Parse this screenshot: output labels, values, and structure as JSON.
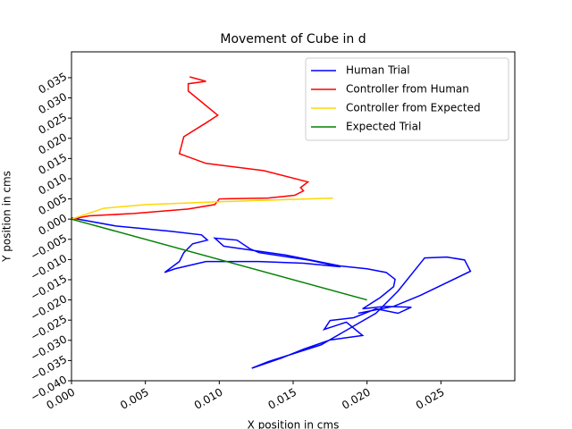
{
  "chart_data": {
    "type": "line",
    "title": "Movement of Cube in d",
    "x_label": "X position in cms",
    "y_label": "Y position in cms",
    "xlim": [
      0,
      0.03
    ],
    "ylim": [
      -0.04,
      0.0414
    ],
    "xticks": [
      {
        "value": 0,
        "label": "0.000"
      },
      {
        "value": 0.005,
        "label": "0.005"
      },
      {
        "value": 0.01,
        "label": "0.010"
      },
      {
        "value": 0.015,
        "label": "0.015"
      },
      {
        "value": 0.02,
        "label": "0.020"
      },
      {
        "value": 0.025,
        "label": "0.025"
      }
    ],
    "yticks": [
      {
        "value": -0.04,
        "label": "−0.040"
      },
      {
        "value": -0.035,
        "label": "−0.035"
      },
      {
        "value": -0.03,
        "label": "−0.030"
      },
      {
        "value": -0.025,
        "label": "−0.025"
      },
      {
        "value": -0.02,
        "label": "−0.020"
      },
      {
        "value": -0.015,
        "label": "−0.015"
      },
      {
        "value": -0.01,
        "label": "−0.010"
      },
      {
        "value": -0.005,
        "label": "−0.005"
      },
      {
        "value": 0,
        "label": "0.000"
      },
      {
        "value": 0.005,
        "label": "0.005"
      },
      {
        "value": 0.01,
        "label": "0.010"
      },
      {
        "value": 0.015,
        "label": "0.015"
      },
      {
        "value": 0.02,
        "label": "0.020"
      },
      {
        "value": 0.025,
        "label": "0.025"
      },
      {
        "value": 0.03,
        "label": "0.030"
      },
      {
        "value": 0.035,
        "label": "0.035"
      }
    ],
    "legend": "upper right",
    "series": [
      {
        "name": "Human Trial",
        "color": "#0000ff",
        "x": [
          0,
          0.003,
          0.0067,
          0.0088,
          0.0092,
          0.0082,
          0.0076,
          0.0073,
          0.0063,
          0.007,
          0.0091,
          0.0127,
          0.0157,
          0.0182,
          0.016,
          0.0127,
          0.0121,
          0.0112,
          0.0097,
          0.0103,
          0.0145,
          0.0182,
          0.02,
          0.0213,
          0.0219,
          0.0218,
          0.0209,
          0.0197,
          0.0212,
          0.023,
          0.0221,
          0.0206,
          0.0191,
          0.0175,
          0.0171,
          0.0186,
          0.0197,
          0.0175,
          0.0157,
          0.0142,
          0.0122,
          0.0133,
          0.0169,
          0.0206,
          0.0221,
          0.0239,
          0.0254,
          0.0266,
          0.027,
          0.0236,
          0.0218,
          0.0194
        ],
        "values": [
          0.0003,
          -0.0017,
          -0.003,
          -0.0039,
          -0.0052,
          -0.0061,
          -0.0083,
          -0.0105,
          -0.0132,
          -0.0123,
          -0.0105,
          -0.0105,
          -0.0109,
          -0.0118,
          -0.0101,
          -0.0083,
          -0.0074,
          -0.0052,
          -0.0047,
          -0.0067,
          -0.0089,
          -0.0116,
          -0.0123,
          -0.0132,
          -0.0149,
          -0.0167,
          -0.0194,
          -0.0222,
          -0.0216,
          -0.0218,
          -0.0233,
          -0.0222,
          -0.0244,
          -0.0251,
          -0.0273,
          -0.0255,
          -0.0288,
          -0.0299,
          -0.0322,
          -0.0344,
          -0.0369,
          -0.0353,
          -0.0311,
          -0.0233,
          -0.0178,
          -0.0096,
          -0.0094,
          -0.0101,
          -0.0129,
          -0.0189,
          -0.0216,
          -0.0233
        ]
      },
      {
        "name": "Controller from Human",
        "color": "#ff0000",
        "x": [
          0,
          0.0012,
          0.0042,
          0.0079,
          0.0097,
          0.01,
          0.0133,
          0.0151,
          0.0157,
          0.0155,
          0.016,
          0.013,
          0.0091,
          0.0073,
          0.0076,
          0.0091,
          0.0099,
          0.0079,
          0.0079,
          0.0091,
          0.008
        ],
        "values": [
          0,
          0.0008,
          0.0014,
          0.0025,
          0.0036,
          0.005,
          0.0052,
          0.0059,
          0.007,
          0.0078,
          0.0092,
          0.012,
          0.0138,
          0.0162,
          0.0204,
          0.0238,
          0.0257,
          0.0317,
          0.0335,
          0.0341,
          0.0352
        ]
      },
      {
        "name": "Controller from Expected",
        "color": "#ffd700",
        "x": [
          0,
          0.0022,
          0.0051,
          0.01,
          0.0177
        ],
        "values": [
          0,
          0.0027,
          0.0036,
          0.0043,
          0.0052
        ]
      },
      {
        "name": "Expected Trial",
        "color": "#008000",
        "x": [
          0,
          0.02
        ],
        "values": [
          0,
          -0.02
        ]
      }
    ]
  }
}
